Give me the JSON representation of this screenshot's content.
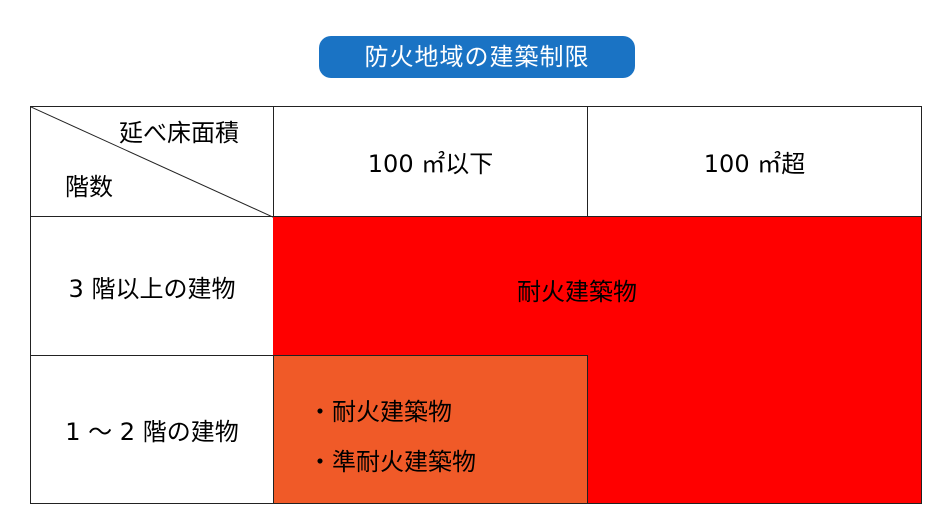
{
  "title": "防火地域の建築制限",
  "colors": {
    "title_bg": "#1a73c4",
    "red": "#ff0000",
    "orange": "#f05a28",
    "border": "#222222"
  },
  "header": {
    "corner_top": "延べ床面積",
    "corner_bottom": "階数",
    "col1": "100 ㎡以下",
    "col2": "100 ㎡超"
  },
  "rows": {
    "row1_label": "3 階以上の建物",
    "row2_label": "1 ～ 2 階の建物"
  },
  "cells": {
    "red_region_label": "耐火建築物",
    "orange_items": [
      "・耐火建築物",
      "・準耐火建築物"
    ]
  }
}
